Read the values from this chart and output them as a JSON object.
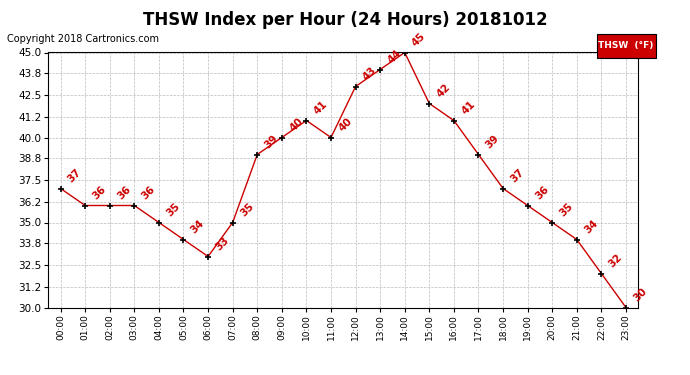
{
  "title": "THSW Index per Hour (24 Hours) 20181012",
  "copyright": "Copyright 2018 Cartronics.com",
  "legend_label": "THSW  (°F)",
  "hours": [
    0,
    1,
    2,
    3,
    4,
    5,
    6,
    7,
    8,
    9,
    10,
    11,
    12,
    13,
    14,
    15,
    16,
    17,
    18,
    19,
    20,
    21,
    22,
    23
  ],
  "values": [
    37,
    36,
    36,
    36,
    35,
    34,
    33,
    35,
    39,
    40,
    41,
    40,
    43,
    44,
    45,
    42,
    41,
    39,
    37,
    36,
    35,
    34,
    32,
    30
  ],
  "x_labels": [
    "00:00",
    "01:00",
    "02:00",
    "03:00",
    "04:00",
    "05:00",
    "06:00",
    "07:00",
    "08:00",
    "09:00",
    "10:00",
    "11:00",
    "12:00",
    "13:00",
    "14:00",
    "15:00",
    "16:00",
    "17:00",
    "18:00",
    "19:00",
    "20:00",
    "21:00",
    "22:00",
    "23:00"
  ],
  "ylim": [
    30.0,
    45.0
  ],
  "yticks": [
    30.0,
    31.2,
    32.5,
    33.8,
    35.0,
    36.2,
    37.5,
    38.8,
    40.0,
    41.2,
    42.5,
    43.8,
    45.0
  ],
  "line_color": "#cc0000",
  "marker_color": "#000000",
  "label_color": "#cc0000",
  "background_color": "#ffffff",
  "grid_color": "#bbbbbb",
  "title_fontsize": 12,
  "copyright_fontsize": 7,
  "legend_bg": "#cc0000",
  "legend_text_color": "#ffffff",
  "label_fontsize": 7.5,
  "xlabel_fontsize": 6.5,
  "ylabel_fontsize": 7.5
}
